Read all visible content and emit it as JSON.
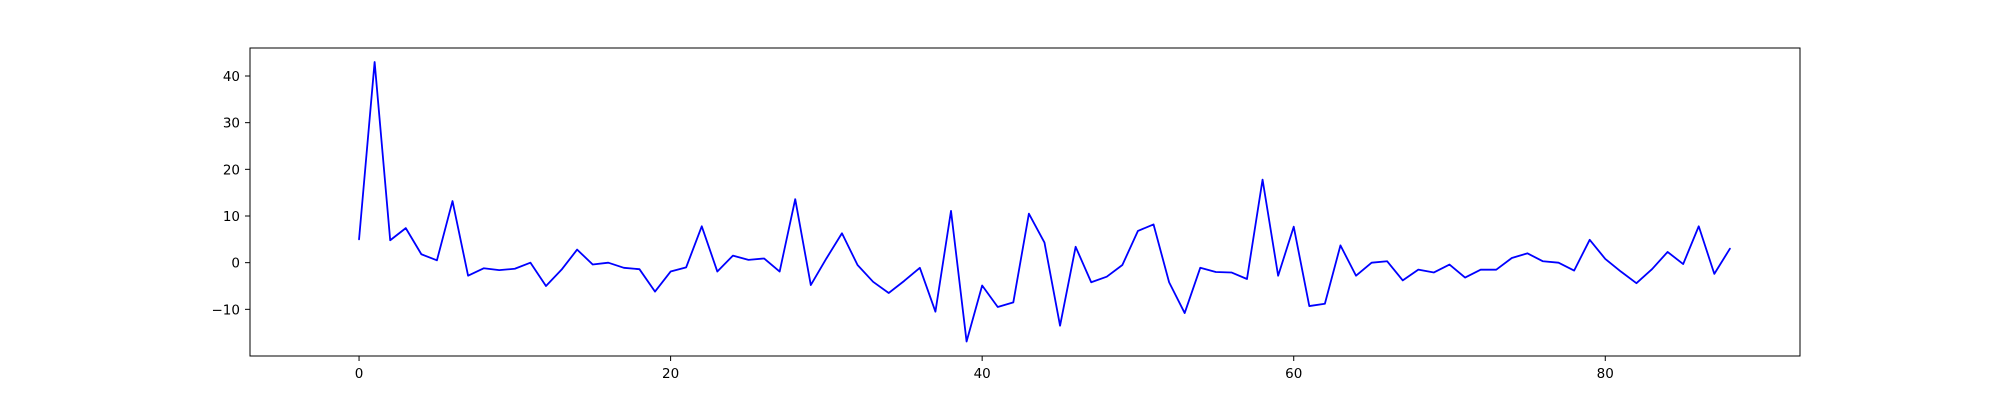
{
  "chart_data": {
    "type": "line",
    "title": "",
    "xlabel": "",
    "ylabel": "",
    "xlim": [
      -7,
      92.5
    ],
    "ylim": [
      -20,
      46
    ],
    "xticks": [
      0,
      20,
      40,
      60,
      80
    ],
    "xtick_labels": [
      "0",
      "20",
      "40",
      "60",
      "80"
    ],
    "yticks": [
      -10,
      0,
      10,
      20,
      30,
      40
    ],
    "ytick_labels": [
      "−10",
      "0",
      "10",
      "20",
      "30",
      "40"
    ],
    "grid": false,
    "legend": "none",
    "series": [
      {
        "color": "#0000ff",
        "x": [
          0,
          1,
          2,
          3,
          4,
          5,
          6,
          7,
          8,
          9,
          10,
          11,
          12,
          13,
          14,
          15,
          16,
          17,
          18,
          19,
          20,
          21,
          22,
          23,
          24,
          25,
          26,
          27,
          28,
          29,
          30,
          31,
          32,
          33,
          34,
          35,
          36,
          37,
          38,
          39,
          40,
          41,
          42,
          43,
          44,
          45,
          46,
          47,
          48,
          49,
          50,
          51,
          52,
          53,
          54,
          55,
          56,
          57,
          58,
          59,
          60,
          61,
          62,
          63,
          64,
          65,
          66,
          67,
          68,
          69,
          70,
          71,
          72,
          73,
          74,
          75,
          76,
          77,
          78,
          79,
          80,
          81,
          82,
          83,
          84,
          85,
          86,
          87,
          88
        ],
        "values": [
          5.0,
          43.0,
          4.8,
          7.4,
          1.8,
          0.5,
          13.2,
          -2.8,
          -1.2,
          -1.6,
          -1.3,
          0.0,
          -5.0,
          -1.5,
          2.8,
          -0.4,
          0.0,
          -1.1,
          -1.4,
          -6.2,
          -1.9,
          -1.0,
          7.8,
          -1.9,
          1.5,
          0.6,
          0.9,
          -1.9,
          13.6,
          -4.8,
          0.9,
          6.3,
          -0.5,
          -4.1,
          -6.5,
          -3.9,
          -1.1,
          -10.5,
          11.1,
          -16.9,
          -4.9,
          -9.5,
          -8.5,
          10.5,
          4.3,
          -13.5,
          3.4,
          -4.2,
          -3.0,
          -0.5,
          6.8,
          8.2,
          -4.2,
          -10.8,
          -1.1,
          -2.0,
          -2.1,
          -3.5,
          17.8,
          -2.8,
          7.7,
          -9.3,
          -8.8,
          3.7,
          -2.8,
          0.0,
          0.3,
          -3.8,
          -1.5,
          -2.1,
          -0.4,
          -3.2,
          -1.5,
          -1.5,
          1.0,
          2.0,
          0.3,
          0.0,
          -1.7,
          4.9,
          0.8,
          -1.9,
          -4.4,
          -1.4,
          2.3,
          -0.3,
          7.8,
          -2.4,
          3.0
        ]
      }
    ]
  }
}
